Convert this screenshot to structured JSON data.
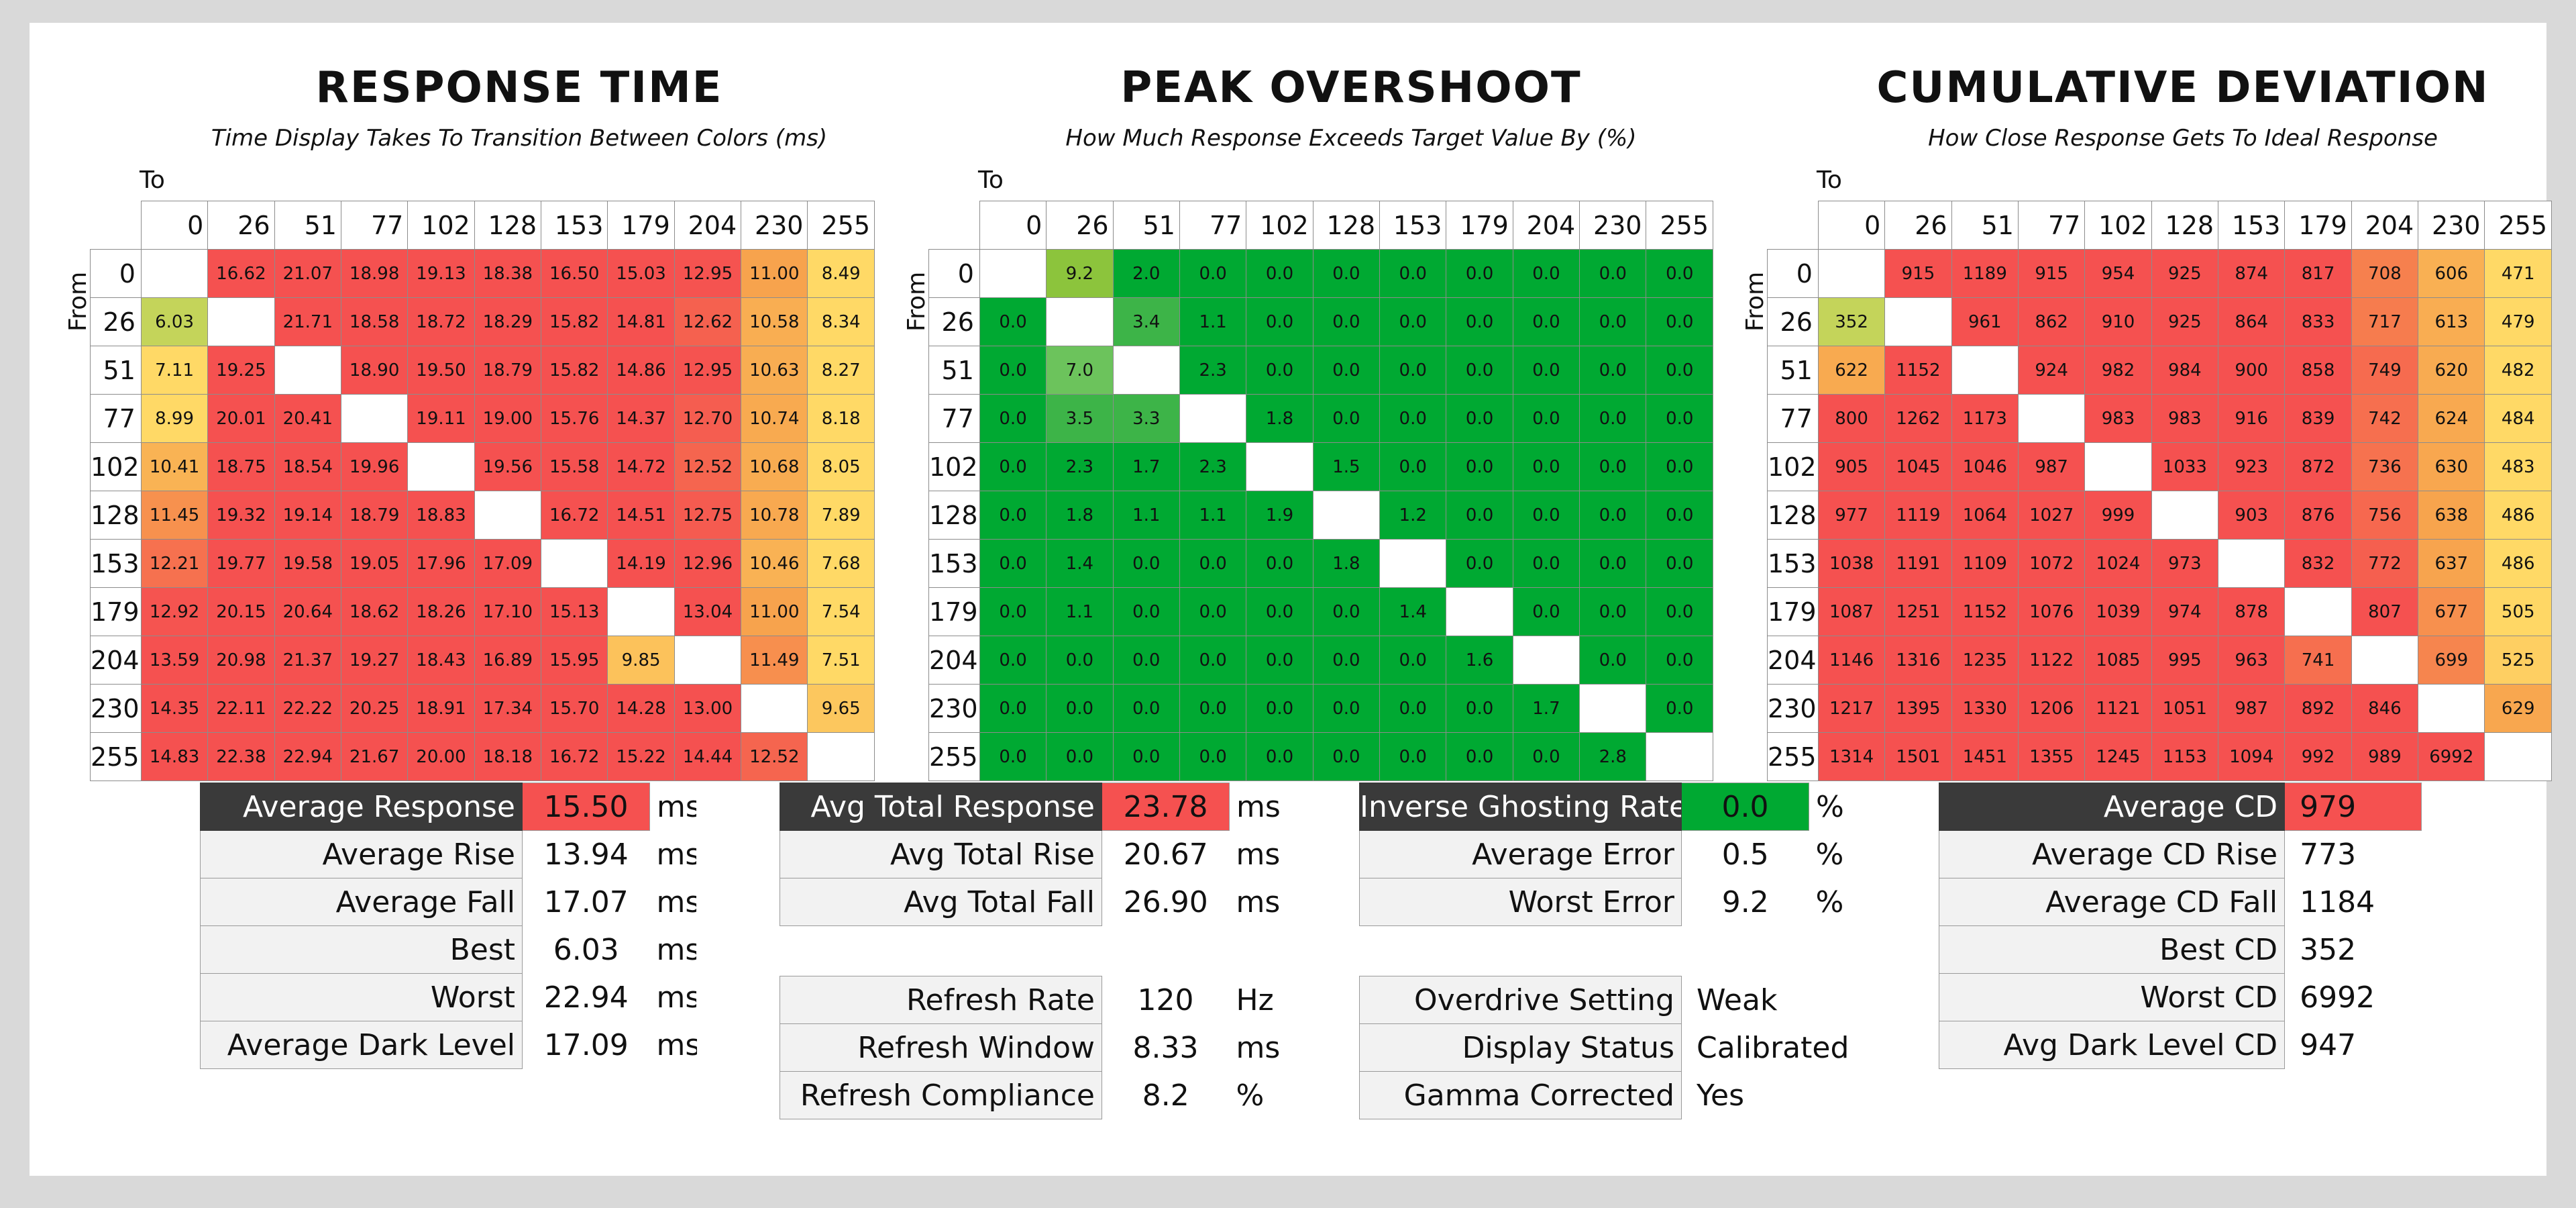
{
  "colors": {
    "best": "#6cc35c",
    "green_full": "#00a932",
    "green_light": "#8cc43c",
    "yellow_green": "#c4d45a",
    "yellow": "#ffd966",
    "orange": "#f7a34d",
    "red": "#f55150",
    "dark_label_bg": "#3a3a3a"
  },
  "chart_data": [
    {
      "type": "heatmap",
      "title": "RESPONSE TIME",
      "subtitle": "Time Display Takes To Transition Between Colors (ms)",
      "x_axis_label": "To",
      "y_axis_label": "From",
      "x": [
        "0",
        "26",
        "51",
        "77",
        "102",
        "128",
        "153",
        "179",
        "204",
        "230",
        "255"
      ],
      "y": [
        "0",
        "26",
        "51",
        "77",
        "102",
        "128",
        "153",
        "179",
        "204",
        "230",
        "255"
      ],
      "values": [
        [
          null,
          "16.62",
          "21.07",
          "18.98",
          "19.13",
          "18.38",
          "16.50",
          "15.03",
          "12.95",
          "11.00",
          "8.49"
        ],
        [
          "6.03",
          null,
          "21.71",
          "18.58",
          "18.72",
          "18.29",
          "15.82",
          "14.81",
          "12.62",
          "10.58",
          "8.34"
        ],
        [
          "7.11",
          "19.25",
          null,
          "18.90",
          "19.50",
          "18.79",
          "15.82",
          "14.86",
          "12.95",
          "10.63",
          "8.27"
        ],
        [
          "8.99",
          "20.01",
          "20.41",
          null,
          "19.11",
          "19.00",
          "15.76",
          "14.37",
          "12.70",
          "10.74",
          "8.18"
        ],
        [
          "10.41",
          "18.75",
          "18.54",
          "19.96",
          null,
          "19.56",
          "15.58",
          "14.72",
          "12.52",
          "10.68",
          "8.05"
        ],
        [
          "11.45",
          "19.32",
          "19.14",
          "18.79",
          "18.83",
          null,
          "16.72",
          "14.51",
          "12.75",
          "10.78",
          "7.89"
        ],
        [
          "12.21",
          "19.77",
          "19.58",
          "19.05",
          "17.96",
          "17.09",
          null,
          "14.19",
          "12.96",
          "10.46",
          "7.68"
        ],
        [
          "12.92",
          "20.15",
          "20.64",
          "18.62",
          "18.26",
          "17.10",
          "15.13",
          null,
          "13.04",
          "11.00",
          "7.54"
        ],
        [
          "13.59",
          "20.98",
          "21.37",
          "19.27",
          "18.43",
          "16.89",
          "15.95",
          "9.85",
          null,
          "11.49",
          "7.51"
        ],
        [
          "14.35",
          "22.11",
          "22.22",
          "20.25",
          "18.91",
          "17.34",
          "15.70",
          "14.28",
          "13.00",
          null,
          "9.65"
        ],
        [
          "14.83",
          "22.38",
          "22.94",
          "21.67",
          "20.00",
          "18.18",
          "16.72",
          "15.22",
          "14.44",
          "12.52",
          null
        ]
      ]
    },
    {
      "type": "heatmap",
      "title": "PEAK OVERSHOOT",
      "subtitle": "How Much Response Exceeds Target Value By (%)",
      "x_axis_label": "To",
      "y_axis_label": "From",
      "x": [
        "0",
        "26",
        "51",
        "77",
        "102",
        "128",
        "153",
        "179",
        "204",
        "230",
        "255"
      ],
      "y": [
        "0",
        "26",
        "51",
        "77",
        "102",
        "128",
        "153",
        "179",
        "204",
        "230",
        "255"
      ],
      "values": [
        [
          null,
          "9.2",
          "2.0",
          "0.0",
          "0.0",
          "0.0",
          "0.0",
          "0.0",
          "0.0",
          "0.0",
          "0.0"
        ],
        [
          "0.0",
          null,
          "3.4",
          "1.1",
          "0.0",
          "0.0",
          "0.0",
          "0.0",
          "0.0",
          "0.0",
          "0.0"
        ],
        [
          "0.0",
          "7.0",
          null,
          "2.3",
          "0.0",
          "0.0",
          "0.0",
          "0.0",
          "0.0",
          "0.0",
          "0.0"
        ],
        [
          "0.0",
          "3.5",
          "3.3",
          null,
          "1.8",
          "0.0",
          "0.0",
          "0.0",
          "0.0",
          "0.0",
          "0.0"
        ],
        [
          "0.0",
          "2.3",
          "1.7",
          "2.3",
          null,
          "1.5",
          "0.0",
          "0.0",
          "0.0",
          "0.0",
          "0.0"
        ],
        [
          "0.0",
          "1.8",
          "1.1",
          "1.1",
          "1.9",
          null,
          "1.2",
          "0.0",
          "0.0",
          "0.0",
          "0.0"
        ],
        [
          "0.0",
          "1.4",
          "0.0",
          "0.0",
          "0.0",
          "1.8",
          null,
          "0.0",
          "0.0",
          "0.0",
          "0.0"
        ],
        [
          "0.0",
          "1.1",
          "0.0",
          "0.0",
          "0.0",
          "0.0",
          "1.4",
          null,
          "0.0",
          "0.0",
          "0.0"
        ],
        [
          "0.0",
          "0.0",
          "0.0",
          "0.0",
          "0.0",
          "0.0",
          "0.0",
          "1.6",
          null,
          "0.0",
          "0.0"
        ],
        [
          "0.0",
          "0.0",
          "0.0",
          "0.0",
          "0.0",
          "0.0",
          "0.0",
          "0.0",
          "1.7",
          null,
          "0.0"
        ],
        [
          "0.0",
          "0.0",
          "0.0",
          "0.0",
          "0.0",
          "0.0",
          "0.0",
          "0.0",
          "0.0",
          "2.8",
          null
        ]
      ]
    },
    {
      "type": "heatmap",
      "title": "CUMULATIVE DEVIATION",
      "subtitle": "How Close Response Gets To Ideal Response",
      "x_axis_label": "To",
      "y_axis_label": "From",
      "x": [
        "0",
        "26",
        "51",
        "77",
        "102",
        "128",
        "153",
        "179",
        "204",
        "230",
        "255"
      ],
      "y": [
        "0",
        "26",
        "51",
        "77",
        "102",
        "128",
        "153",
        "179",
        "204",
        "230",
        "255"
      ],
      "values": [
        [
          null,
          "915",
          "1189",
          "915",
          "954",
          "925",
          "874",
          "817",
          "708",
          "606",
          "471"
        ],
        [
          "352",
          null,
          "961",
          "862",
          "910",
          "925",
          "864",
          "833",
          "717",
          "613",
          "479"
        ],
        [
          "622",
          "1152",
          null,
          "924",
          "982",
          "984",
          "900",
          "858",
          "749",
          "620",
          "482"
        ],
        [
          "800",
          "1262",
          "1173",
          null,
          "983",
          "983",
          "916",
          "839",
          "742",
          "624",
          "484"
        ],
        [
          "905",
          "1045",
          "1046",
          "987",
          null,
          "1033",
          "923",
          "872",
          "736",
          "630",
          "483"
        ],
        [
          "977",
          "1119",
          "1064",
          "1027",
          "999",
          null,
          "903",
          "876",
          "756",
          "638",
          "486"
        ],
        [
          "1038",
          "1191",
          "1109",
          "1072",
          "1024",
          "973",
          null,
          "832",
          "772",
          "637",
          "486"
        ],
        [
          "1087",
          "1251",
          "1152",
          "1076",
          "1039",
          "974",
          "878",
          null,
          "807",
          "677",
          "505"
        ],
        [
          "1146",
          "1316",
          "1235",
          "1122",
          "1085",
          "995",
          "963",
          "741",
          null,
          "699",
          "525"
        ],
        [
          "1217",
          "1395",
          "1330",
          "1206",
          "1121",
          "1051",
          "987",
          "892",
          "846",
          null,
          "629"
        ],
        [
          "1314",
          "1501",
          "1451",
          "1355",
          "1245",
          "1153",
          "1094",
          "992",
          "989",
          "6992",
          null
        ]
      ]
    }
  ],
  "stats": {
    "response": [
      {
        "label": "Average Response",
        "value": "15.50",
        "unit": "ms",
        "highlight": "red"
      },
      {
        "label": "Average Rise",
        "value": "13.94",
        "unit": "ms"
      },
      {
        "label": "Average Fall",
        "value": "17.07",
        "unit": "ms"
      },
      {
        "label": "Best",
        "value": "6.03",
        "unit": "ms"
      },
      {
        "label": "Worst",
        "value": "22.94",
        "unit": "ms"
      },
      {
        "label": "Average Dark Level",
        "value": "17.09",
        "unit": "ms"
      }
    ],
    "total": [
      {
        "label": "Avg Total Response",
        "value": "23.78",
        "unit": "ms",
        "highlight": "red"
      },
      {
        "label": "Avg Total Rise",
        "value": "20.67",
        "unit": "ms"
      },
      {
        "label": "Avg Total Fall",
        "value": "26.90",
        "unit": "ms"
      }
    ],
    "refresh": [
      {
        "label": "Refresh Rate",
        "value": "120",
        "unit": "Hz"
      },
      {
        "label": "Refresh Window",
        "value": "8.33",
        "unit": "ms"
      },
      {
        "label": "Refresh Compliance",
        "value": "8.2",
        "unit": "%"
      }
    ],
    "ghosting": [
      {
        "label": "Inverse Ghosting Rate",
        "value": "0.0",
        "unit": "%",
        "highlight": "green"
      },
      {
        "label": "Average Error",
        "value": "0.5",
        "unit": "%"
      },
      {
        "label": "Worst Error",
        "value": "9.2",
        "unit": "%"
      }
    ],
    "settings": [
      {
        "label": "Overdrive Setting",
        "value": "Weak"
      },
      {
        "label": "Display Status",
        "value": "Calibrated"
      },
      {
        "label": "Gamma Corrected",
        "value": "Yes"
      }
    ],
    "cd": [
      {
        "label": "Average CD",
        "value": "979",
        "highlight": "red"
      },
      {
        "label": "Average CD Rise",
        "value": "773"
      },
      {
        "label": "Average CD Fall",
        "value": "1184"
      },
      {
        "label": "Best CD",
        "value": "352"
      },
      {
        "label": "Worst CD",
        "value": "6992"
      },
      {
        "label": "Avg Dark Level CD",
        "value": "947"
      }
    ]
  }
}
